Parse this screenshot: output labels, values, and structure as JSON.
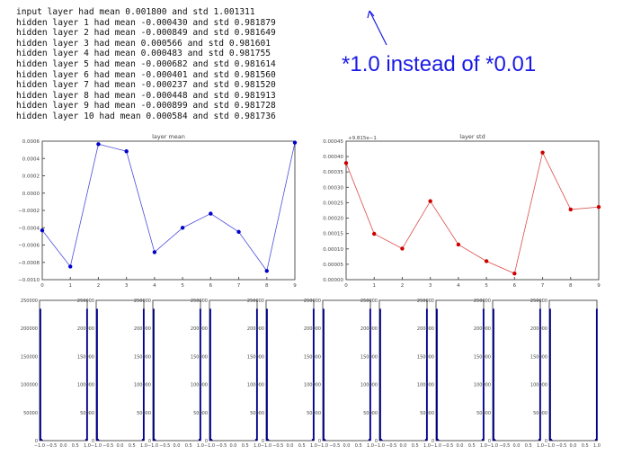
{
  "log_lines": [
    "input layer had mean 0.001800 and std 1.001311",
    "hidden layer 1 had mean -0.000430 and std 0.981879",
    "hidden layer 2 had mean -0.000849 and std 0.981649",
    "hidden layer 3 had mean 0.000566 and std 0.981601",
    "hidden layer 4 had mean 0.000483 and std 0.981755",
    "hidden layer 5 had mean -0.000682 and std 0.981614",
    "hidden layer 6 had mean -0.000401 and std 0.981560",
    "hidden layer 7 had mean -0.000237 and std 0.981520",
    "hidden layer 8 had mean -0.000448 and std 0.981913",
    "hidden layer 9 had mean -0.000899 and std 0.981728",
    "hidden layer 10 had mean 0.000584 and std 0.981736"
  ],
  "annotation": "*1.0 instead of *0.01",
  "colors": {
    "annotation": "#1a1ae6",
    "mean_series": "#0000cc",
    "std_series": "#cc0000",
    "hist": "#00008b"
  },
  "chart_data": [
    {
      "type": "line",
      "title": "layer mean",
      "x": [
        0,
        1,
        2,
        3,
        4,
        5,
        6,
        7,
        8,
        9
      ],
      "values": [
        -0.00043,
        -0.000849,
        0.000566,
        0.000483,
        -0.000682,
        -0.000401,
        -0.000237,
        -0.000448,
        -0.000899,
        0.000584
      ],
      "xlim": [
        0,
        9
      ],
      "ylim": [
        -0.001,
        0.0006
      ],
      "xticks": [
        "0",
        "1",
        "2",
        "3",
        "4",
        "5",
        "6",
        "7",
        "8",
        "9"
      ],
      "yticks": [
        "0.0006",
        "0.0004",
        "0.0002",
        "0.0000",
        "−0.0002",
        "−0.0004",
        "−0.0006",
        "−0.0008",
        "−0.0010"
      ],
      "color": "#0000cc"
    },
    {
      "type": "line",
      "title": "layer std",
      "offset_label": "+9.815e−1",
      "x": [
        0,
        1,
        2,
        3,
        4,
        5,
        6,
        7,
        8,
        9
      ],
      "values": [
        0.000379,
        0.000149,
        0.000101,
        0.000255,
        0.000114,
        6e-05,
        2e-05,
        0.000413,
        0.000228,
        0.000236
      ],
      "xlim": [
        0,
        9
      ],
      "ylim": [
        0,
        0.00045
      ],
      "xticks": [
        "0",
        "1",
        "2",
        "3",
        "4",
        "5",
        "6",
        "7",
        "8",
        "9"
      ],
      "yticks": [
        "0.00045",
        "0.00040",
        "0.00035",
        "0.00030",
        "0.00025",
        "0.00020",
        "0.00015",
        "0.00010",
        "0.00005",
        "0.00000"
      ],
      "color": "#cc0000"
    },
    {
      "type": "bar",
      "subplots": 10,
      "xlim": [
        -1,
        1
      ],
      "ylim": [
        0,
        250000
      ],
      "xticks": [
        "−1.0",
        "−0.5",
        "0.0",
        "0.5",
        "1.0"
      ],
      "yticks": [
        "250000",
        "200000",
        "150000",
        "100000",
        "50000",
        "0"
      ],
      "bins": [
        -1.0,
        -0.96,
        -0.92,
        0.92,
        0.96
      ],
      "counts": [
        235000,
        3000,
        1200,
        3000,
        235000
      ],
      "color": "#00008b"
    }
  ]
}
